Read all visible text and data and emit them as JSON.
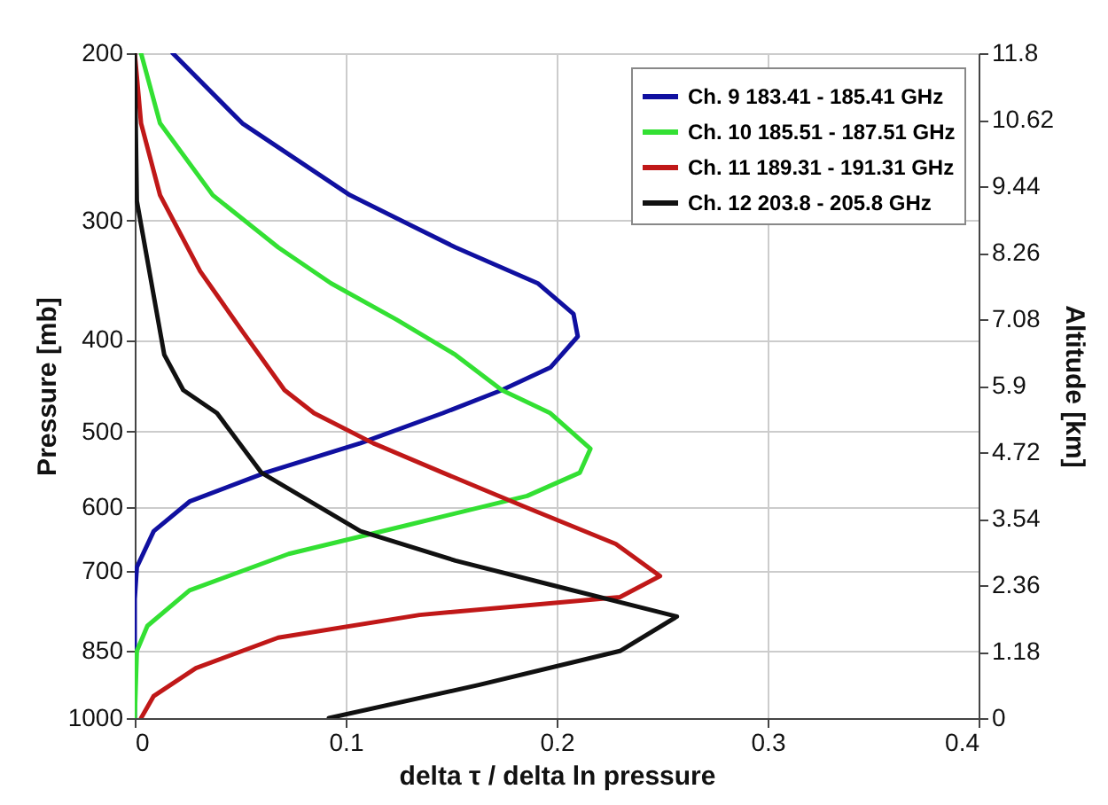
{
  "chart_data": {
    "type": "line",
    "xlabel": "delta τ / delta ln pressure",
    "ylabel": "Pressure [mb]",
    "y2label": "Altitude [km]",
    "xlim": [
      0,
      0.4
    ],
    "xticks": [
      0,
      0.1,
      0.2,
      0.3,
      0.4
    ],
    "ylim": [
      1000,
      200
    ],
    "yticks": [
      200,
      300,
      400,
      500,
      600,
      700,
      850,
      1000
    ],
    "log": "y",
    "y2lim": [
      0,
      11.8
    ],
    "y2ticks": [
      0,
      1.18,
      2.36,
      3.54,
      4.72,
      5.9,
      7.08,
      8.26,
      9.44,
      10.62,
      11.8
    ],
    "grid": true,
    "legend": "top right",
    "line_style": "solid",
    "marker": "none",
    "series": [
      {
        "name": "Ch. 9 183.41 - 185.41 GHz",
        "color": "#1010a0",
        "x": [
          0.018,
          0.051,
          0.102,
          0.152,
          0.191,
          0.208,
          0.21,
          0.197,
          0.174,
          0.146,
          0.107,
          0.062,
          0.026,
          0.009,
          0.001,
          0,
          0
        ],
        "values": [
          200,
          237,
          282,
          320,
          349,
          376,
          397,
          428,
          452,
          478,
          514,
          552,
          592,
          636,
          694,
          750,
          1000
        ]
      },
      {
        "name": "Ch. 10 185.51 - 187.51 GHz",
        "color": "#33e033",
        "x": [
          0.003,
          0.012,
          0.037,
          0.068,
          0.093,
          0.124,
          0.152,
          0.174,
          0.197,
          0.216,
          0.211,
          0.186,
          0.129,
          0.073,
          0.026,
          0.006,
          0.001,
          0
        ],
        "values": [
          200,
          237,
          282,
          320,
          349,
          381,
          415,
          452,
          478,
          521,
          552,
          584,
          627,
          672,
          734,
          800,
          850,
          1000
        ]
      },
      {
        "name": "Ch. 11 189.31 - 191.31 GHz",
        "color": "#c01818",
        "x": [
          0,
          0.003,
          0.012,
          0.031,
          0.051,
          0.071,
          0.085,
          0.113,
          0.146,
          0.186,
          0.228,
          0.249,
          0.23,
          0.135,
          0.068,
          0.029,
          0.009,
          0.003
        ],
        "values": [
          200,
          237,
          282,
          339,
          392,
          452,
          478,
          514,
          552,
          601,
          656,
          709,
          746,
          779,
          823,
          886,
          948,
          1000
        ]
      },
      {
        "name": "Ch. 12 203.8 - 205.8 GHz",
        "color": "#111111",
        "x": [
          0,
          0.001,
          0.012,
          0.014,
          0.023,
          0.039,
          0.06,
          0.107,
          0.152,
          0.197,
          0.257,
          0.23,
          0.163,
          0.092
        ],
        "values": [
          200,
          286,
          392,
          415,
          452,
          478,
          552,
          636,
          683,
          724,
          782,
          850,
          923,
          1000
        ]
      }
    ]
  }
}
